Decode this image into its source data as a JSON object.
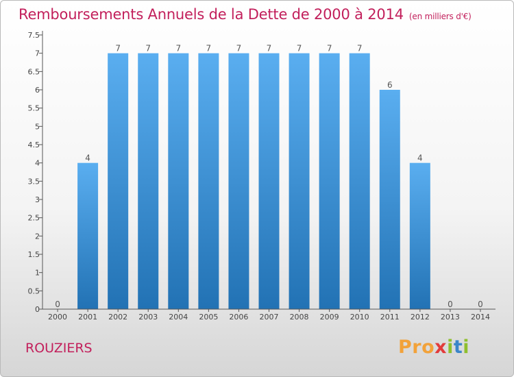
{
  "title": "Remboursements Annuels de la Dette de 2000 à 2014",
  "subtitle": "(en milliers d'€)",
  "location": "ROUZIERS",
  "logo": {
    "text": "Proxiti",
    "colors": [
      "#f2a23a",
      "#3b86c9",
      "#8fbf2e",
      "#e23b3b"
    ]
  },
  "colors": {
    "bar_top": "#5aaef0",
    "bar_bottom": "#2272b4",
    "title": "#c21f5b",
    "axis": "#555555"
  },
  "chart_data": {
    "type": "bar",
    "categories": [
      "2000",
      "2001",
      "2002",
      "2003",
      "2004",
      "2005",
      "2006",
      "2007",
      "2008",
      "2009",
      "2010",
      "2011",
      "2012",
      "2013",
      "2014"
    ],
    "values": [
      0,
      4,
      7,
      7,
      7,
      7,
      7,
      7,
      7,
      7,
      7,
      6,
      4,
      0,
      0
    ],
    "value_labels": [
      "0",
      "4",
      "7",
      "7",
      "7",
      "7",
      "7",
      "7",
      "7",
      "7",
      "7",
      "6",
      "4",
      "0",
      "0"
    ],
    "ylim": [
      0,
      7.5
    ],
    "yticks": [
      0,
      0.5,
      1,
      1.5,
      2,
      2.5,
      3,
      3.5,
      4,
      4.5,
      5,
      5.5,
      6,
      6.5,
      7,
      7.5
    ],
    "ytick_labels": [
      "0",
      "0.5",
      "1",
      "1.5",
      "2",
      "2.5",
      "3",
      "3.5",
      "4",
      "4.5",
      "5",
      "5.5",
      "6",
      "6.5",
      "7",
      "7.5"
    ],
    "grid": false,
    "xlabel": "",
    "ylabel": ""
  }
}
